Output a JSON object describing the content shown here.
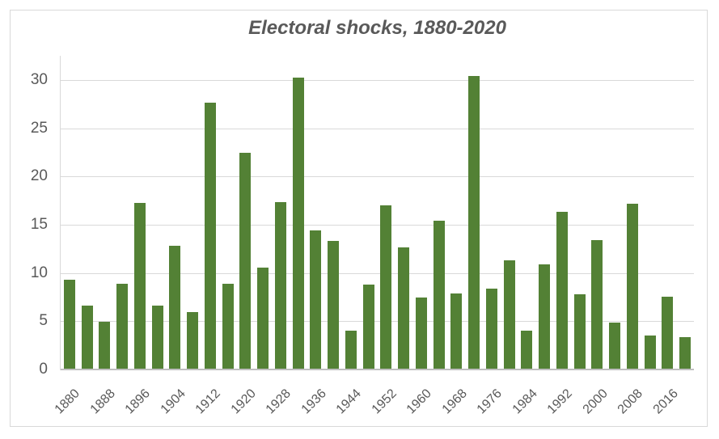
{
  "chart_data": {
    "type": "bar",
    "title": "Electoral shocks, 1880-2020",
    "categories": [
      "1880",
      "1884",
      "1888",
      "1892",
      "1896",
      "1900",
      "1904",
      "1908",
      "1912",
      "1916",
      "1920",
      "1924",
      "1928",
      "1932",
      "1936",
      "1940",
      "1944",
      "1948",
      "1952",
      "1956",
      "1960",
      "1964",
      "1968",
      "1972",
      "1976",
      "1980",
      "1984",
      "1988",
      "1992",
      "1996",
      "2000",
      "2004",
      "2008",
      "2012",
      "2016",
      "2020"
    ],
    "values": [
      9.2,
      6.5,
      4.9,
      8.8,
      17.2,
      6.5,
      12.7,
      5.9,
      27.6,
      8.8,
      22.4,
      10.5,
      17.3,
      30.2,
      14.3,
      13.2,
      3.9,
      8.7,
      16.9,
      12.6,
      7.4,
      15.3,
      7.8,
      30.3,
      8.3,
      11.2,
      3.9,
      10.8,
      16.3,
      7.7,
      13.3,
      4.8,
      17.1,
      3.4,
      7.5,
      3.3
    ],
    "x_tick_labels": [
      "1880",
      "1888",
      "1896",
      "1904",
      "1912",
      "1920",
      "1928",
      "1936",
      "1944",
      "1952",
      "1960",
      "1968",
      "1976",
      "1984",
      "1992",
      "2000",
      "2008",
      "2016"
    ],
    "y_ticks": [
      0,
      5,
      10,
      15,
      20,
      25,
      30
    ],
    "ylim": [
      0,
      30
    ],
    "xlabel": "",
    "ylabel": "",
    "grid": true,
    "legend": false,
    "colors": {
      "bar": "#538135",
      "gridline": "#d9d9d9",
      "axis_line": "#bfbfbf",
      "text": "#595959",
      "frame_border": "#d9d9d9",
      "background": "#ffffff"
    }
  }
}
